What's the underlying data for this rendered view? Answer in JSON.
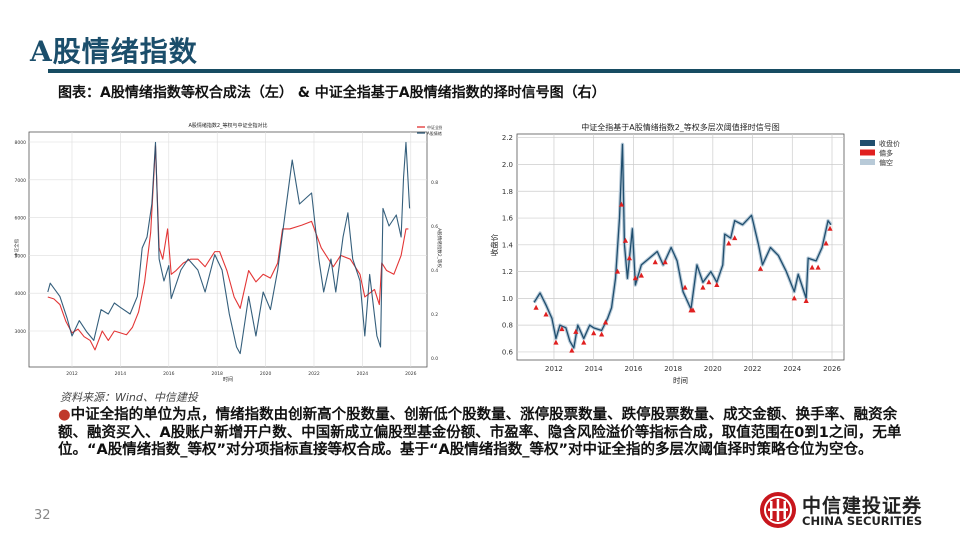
{
  "header": {
    "title": "A股情绪指数",
    "subtitle": "图表：A股情绪指数等权合成法（左） & 中证全指基于A股情绪指数的择时信号图（右）"
  },
  "source": "资料来源：Wind、中信建投",
  "body_text": "中证全指的单位为点，情绪指数由创新高个股数量、创新低个股数量、涨停股票数量、跌停股票数量、成交金额、换手率、融资余额、融资买入、A股账户新增开户数、中国新成立偏股型基金份额、市盈率、隐含风险溢价等指标合成，取值范围在0到1之间，无单位。“A股情绪指数_等权”对分项指标直接等权合成。基于“A股情绪指数_等权”对中证全指的多层次阈值择时策略仓位为空仓。",
  "page_number": "32",
  "logo": {
    "cn": "中信建投证券",
    "en": "CHINA SECURITIES"
  },
  "colors": {
    "brand": "#174c62",
    "red": "#e02020",
    "blue": "#1f4e6e",
    "light": "#b8cad8"
  },
  "chart_data": [
    {
      "type": "line",
      "title": "A股情绪指数2_等权与中证全指对比",
      "xlabel": "时间",
      "ylabel": "中证全指",
      "ylabel_right": "A股情绪指数2_等权",
      "xticks": [
        "2012",
        "2014",
        "2016",
        "2018",
        "2020",
        "2022",
        "2024",
        "2026"
      ],
      "yticks": [
        3000,
        4000,
        5000,
        6000,
        7000,
        8000
      ],
      "yticks_right": [
        0.0,
        0.2,
        0.4,
        0.6,
        0.8
      ],
      "ylim": [
        2000,
        8300
      ],
      "ylim_right": [
        0.0,
        1.0
      ],
      "grid": true,
      "legend": "top-right",
      "series": [
        {
          "name": "中证全指",
          "axis": "left",
          "color": "#e02020",
          "x": [
            2011.0,
            2011.25,
            2011.5,
            2011.75,
            2012.0,
            2012.25,
            2012.5,
            2012.75,
            2012.95,
            2013.25,
            2013.5,
            2013.75,
            2014.0,
            2014.25,
            2014.5,
            2014.75,
            2015.0,
            2015.25,
            2015.45,
            2015.6,
            2015.75,
            2015.95,
            2016.1,
            2016.3,
            2016.6,
            2016.9,
            2017.2,
            2017.5,
            2017.9,
            2018.1,
            2018.4,
            2018.7,
            2018.95,
            2019.3,
            2019.6,
            2019.9,
            2020.2,
            2020.5,
            2020.7,
            2021.0,
            2021.5,
            2021.9,
            2022.3,
            2022.8,
            2023.1,
            2023.5,
            2023.9,
            2024.1,
            2024.5,
            2024.7,
            2024.8,
            2025.0,
            2025.3,
            2025.6,
            2025.8,
            2025.9
          ],
          "y": [
            3900,
            3850,
            3700,
            3250,
            2950,
            3050,
            2850,
            2750,
            2500,
            3000,
            2750,
            3000,
            2950,
            2900,
            3100,
            3500,
            4300,
            5600,
            7900,
            5200,
            4900,
            5700,
            4500,
            4600,
            4800,
            4900,
            4900,
            4700,
            5100,
            5100,
            4600,
            3900,
            3600,
            4600,
            4300,
            4500,
            4400,
            4800,
            5700,
            5700,
            5800,
            5900,
            5200,
            4700,
            5000,
            4900,
            4500,
            3900,
            4100,
            3700,
            4800,
            4600,
            4500,
            5000,
            5700,
            5700
          ]
        },
        {
          "name": "A股情绪指数2_等权",
          "axis": "right",
          "color": "#1f4e6e",
          "x": [
            2011.0,
            2011.1,
            2011.5,
            2011.8,
            2012.0,
            2012.3,
            2012.6,
            2012.9,
            2013.2,
            2013.5,
            2013.75,
            2014.0,
            2014.4,
            2014.7,
            2014.9,
            2015.1,
            2015.3,
            2015.45,
            2015.6,
            2015.8,
            2016.0,
            2016.1,
            2016.5,
            2016.8,
            2017.2,
            2017.5,
            2017.9,
            2018.2,
            2018.5,
            2018.8,
            2018.95,
            2019.3,
            2019.6,
            2019.9,
            2020.2,
            2020.5,
            2020.8,
            2021.1,
            2021.4,
            2021.9,
            2022.2,
            2022.4,
            2022.7,
            2022.9,
            2023.2,
            2023.4,
            2023.6,
            2023.9,
            2024.1,
            2024.3,
            2024.6,
            2024.75,
            2024.85,
            2025.1,
            2025.4,
            2025.6,
            2025.7,
            2025.8,
            2025.95
          ],
          "y": [
            0.3,
            0.34,
            0.28,
            0.18,
            0.1,
            0.17,
            0.12,
            0.08,
            0.22,
            0.2,
            0.25,
            0.23,
            0.2,
            0.28,
            0.5,
            0.55,
            0.7,
            0.98,
            0.45,
            0.35,
            0.42,
            0.27,
            0.4,
            0.45,
            0.4,
            0.3,
            0.47,
            0.4,
            0.2,
            0.05,
            0.02,
            0.28,
            0.1,
            0.3,
            0.22,
            0.4,
            0.65,
            0.9,
            0.7,
            0.75,
            0.45,
            0.3,
            0.45,
            0.3,
            0.55,
            0.66,
            0.45,
            0.35,
            0.1,
            0.38,
            0.1,
            0.05,
            0.68,
            0.6,
            0.65,
            0.55,
            0.82,
            0.98,
            0.68
          ]
        }
      ]
    },
    {
      "type": "line",
      "title": "中证全指基于A股情绪指数2_等权多层次阈值择时信号图",
      "xlabel": "时间",
      "ylabel": "收盘价",
      "xticks": [
        "2012",
        "2014",
        "2016",
        "2018",
        "2020",
        "2022",
        "2024",
        "2026"
      ],
      "yticks": [
        0.6,
        0.8,
        1.0,
        1.2,
        1.4,
        1.6,
        1.8,
        2.0,
        2.2
      ],
      "ylim": [
        0.55,
        2.23
      ],
      "grid": true,
      "legend": "top-right",
      "legend_entries": [
        "收盘价",
        "偏多",
        "偏空"
      ],
      "series": [
        {
          "name": "收盘价",
          "color": "#1f4e6e",
          "x": [
            2011.0,
            2011.3,
            2011.6,
            2011.9,
            2012.1,
            2012.3,
            2012.6,
            2012.8,
            2013.0,
            2013.2,
            2013.5,
            2013.8,
            2014.0,
            2014.4,
            2014.7,
            2014.9,
            2015.1,
            2015.3,
            2015.45,
            2015.55,
            2015.7,
            2015.95,
            2016.1,
            2016.4,
            2016.8,
            2017.2,
            2017.5,
            2017.9,
            2018.2,
            2018.5,
            2018.9,
            2019.2,
            2019.5,
            2019.9,
            2020.2,
            2020.5,
            2020.6,
            2020.9,
            2021.1,
            2021.5,
            2021.95,
            2022.3,
            2022.5,
            2022.9,
            2023.3,
            2023.7,
            2024.1,
            2024.3,
            2024.7,
            2024.8,
            2025.2,
            2025.5,
            2025.8,
            2025.95
          ],
          "y": [
            0.97,
            1.04,
            0.95,
            0.85,
            0.7,
            0.8,
            0.78,
            0.68,
            0.63,
            0.8,
            0.7,
            0.8,
            0.78,
            0.76,
            0.85,
            0.93,
            1.15,
            1.6,
            2.15,
            1.4,
            1.15,
            1.52,
            1.1,
            1.25,
            1.3,
            1.35,
            1.25,
            1.38,
            1.28,
            1.05,
            0.92,
            1.25,
            1.12,
            1.2,
            1.12,
            1.25,
            1.48,
            1.45,
            1.58,
            1.55,
            1.62,
            1.4,
            1.25,
            1.38,
            1.32,
            1.2,
            1.05,
            1.18,
            1.0,
            1.3,
            1.28,
            1.38,
            1.58,
            1.55
          ]
        },
        {
          "name": "偏多",
          "color": "#e02020",
          "marker": "triangle",
          "x": [
            2011.1,
            2011.6,
            2012.1,
            2012.4,
            2012.9,
            2013.1,
            2013.5,
            2014.0,
            2014.4,
            2014.6,
            2015.2,
            2015.4,
            2015.6,
            2015.8,
            2016.1,
            2016.4,
            2017.1,
            2017.6,
            2018.6,
            2018.9,
            2019.0,
            2019.5,
            2019.8,
            2020.2,
            2020.8,
            2021.1,
            2022.4,
            2024.1,
            2024.7,
            2025.0,
            2025.3,
            2025.7,
            2025.9
          ],
          "y": [
            0.93,
            0.88,
            0.67,
            0.77,
            0.61,
            0.75,
            0.67,
            0.74,
            0.73,
            0.82,
            1.2,
            1.7,
            1.43,
            1.3,
            1.15,
            1.17,
            1.27,
            1.27,
            1.08,
            0.91,
            0.91,
            1.08,
            1.12,
            1.1,
            1.41,
            1.45,
            1.22,
            1.0,
            0.98,
            1.23,
            1.23,
            1.41,
            1.52
          ]
        }
      ]
    }
  ]
}
